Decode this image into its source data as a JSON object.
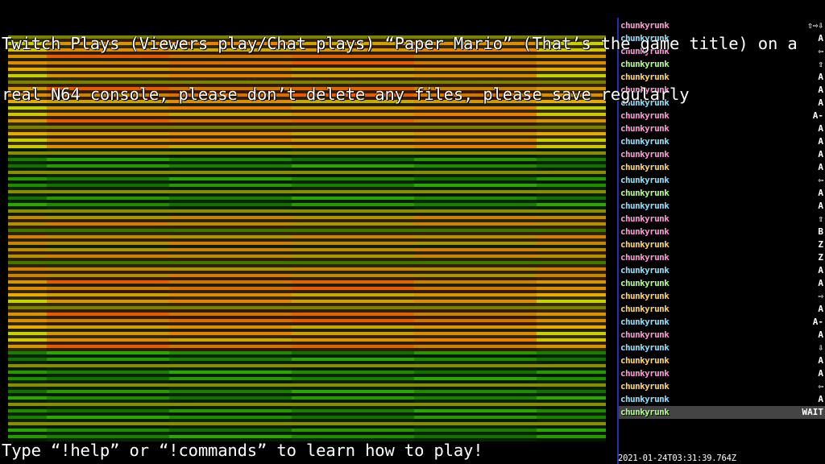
{
  "stream": {
    "title_line1": "Twitch Plays (Viewers play/Chat plays) “Paper Mario” (That’s the game title) on a",
    "title_line2": "real N64 console, please don’t delete any files, please save regularly",
    "help_text": "Type “!help” or “!commands” to learn how to play!",
    "timestamp": "2021-01-24T03:31:39.764Z"
  },
  "chat": {
    "messages": [
      {
        "user": "chunkyrunk",
        "command": "⇧⇨⇩",
        "color": "#ff9ad6"
      },
      {
        "user": "chunkyrunk",
        "command": "A",
        "color": "#8fe0ff"
      },
      {
        "user": "chunkyrunk",
        "command": "⇦",
        "color": "#ff9ad6"
      },
      {
        "user": "chunkyrunk",
        "command": "⇧",
        "color": "#b6ff8a"
      },
      {
        "user": "chunkyrunk",
        "command": "A",
        "color": "#ffd866"
      },
      {
        "user": "chunkyrunk",
        "command": "A",
        "color": "#ff9ad6"
      },
      {
        "user": "chunkyrunk",
        "command": "A",
        "color": "#8fe0ff"
      },
      {
        "user": "chunkyrunk",
        "command": "A-",
        "color": "#ff9ad6"
      },
      {
        "user": "chunkyrunk",
        "command": "A",
        "color": "#ff9ad6"
      },
      {
        "user": "chunkyrunk",
        "command": "A",
        "color": "#8fe0ff"
      },
      {
        "user": "chunkyrunk",
        "command": "A",
        "color": "#ff9ad6"
      },
      {
        "user": "chunkyrunk",
        "command": "A",
        "color": "#ffd866"
      },
      {
        "user": "chunkyrunk",
        "command": "⇦",
        "color": "#8fe0ff"
      },
      {
        "user": "chunkyrunk",
        "command": "A",
        "color": "#b6ff8a"
      },
      {
        "user": "chunkyrunk",
        "command": "A",
        "color": "#8fe0ff"
      },
      {
        "user": "chunkyrunk",
        "command": "⇧",
        "color": "#ff9ad6"
      },
      {
        "user": "chunkyrunk",
        "command": "B",
        "color": "#ff9ad6"
      },
      {
        "user": "chunkyrunk",
        "command": "Z",
        "color": "#ffd866"
      },
      {
        "user": "chunkyrunk",
        "command": "Z",
        "color": "#ff9ad6"
      },
      {
        "user": "chunkyrunk",
        "command": "A",
        "color": "#8fe0ff"
      },
      {
        "user": "chunkyrunk",
        "command": "A",
        "color": "#b6ff8a"
      },
      {
        "user": "chunkyrunk",
        "command": "⇨",
        "color": "#ffd866"
      },
      {
        "user": "chunkyrunk",
        "command": "A",
        "color": "#ffd866"
      },
      {
        "user": "chunkyrunk",
        "command": "A-",
        "color": "#8fe0ff"
      },
      {
        "user": "chunkyrunk",
        "command": "A",
        "color": "#ff9ad6"
      },
      {
        "user": "chunkyrunk",
        "command": "⇩",
        "color": "#8fe0ff"
      },
      {
        "user": "chunkyrunk",
        "command": "A",
        "color": "#ffd866"
      },
      {
        "user": "chunkyrunk",
        "command": "A",
        "color": "#ff9ad6"
      },
      {
        "user": "chunkyrunk",
        "command": "⇦",
        "color": "#ffd866"
      },
      {
        "user": "chunkyrunk",
        "command": "A",
        "color": "#8fe0ff"
      },
      {
        "user": "chunkyrunk",
        "command": "WAIT",
        "color": "#b6ff8a",
        "highlight": true
      }
    ]
  },
  "colors": {
    "chat_divider": "#1f2fb8",
    "highlight_row": "#444444"
  }
}
